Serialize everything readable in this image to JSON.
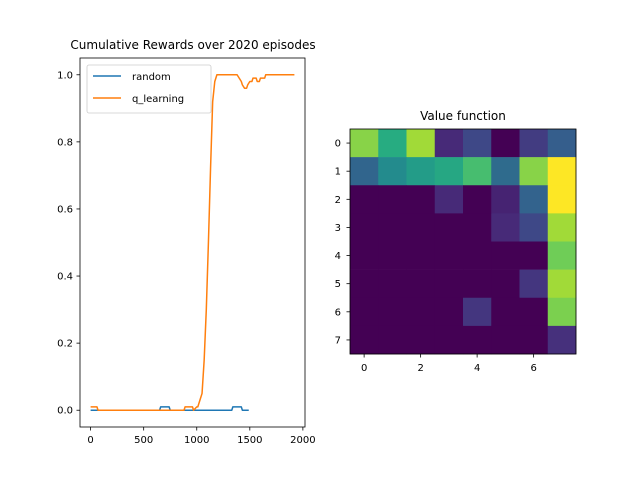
{
  "chart_data": [
    {
      "type": "line",
      "title": "Cumulative Rewards over 2020 episodes",
      "xlabel": "",
      "ylabel": "",
      "xlim": [
        -100,
        2020
      ],
      "ylim": [
        -0.05,
        1.05
      ],
      "xticks": [
        0,
        500,
        1000,
        1500,
        2000
      ],
      "xtick_labels": [
        "0",
        "500",
        "1000",
        "1500",
        "2000"
      ],
      "yticks": [
        0.0,
        0.2,
        0.4,
        0.6,
        0.8,
        1.0
      ],
      "ytick_labels": [
        "0.0",
        "0.2",
        "0.4",
        "0.6",
        "0.8",
        "1.0"
      ],
      "grid": false,
      "legend": "top-left",
      "series": [
        {
          "name": "random",
          "color": "#1f77b4",
          "x": [
            0,
            650,
            660,
            740,
            750,
            1330,
            1340,
            1420,
            1430,
            1490
          ],
          "y": [
            0.0,
            0.0,
            0.01,
            0.01,
            0.0,
            0.0,
            0.01,
            0.01,
            0.0,
            0.0
          ]
        },
        {
          "name": "q_learning",
          "color": "#ff7f0e",
          "x": [
            0,
            60,
            70,
            880,
            890,
            960,
            970,
            1000,
            1010,
            1030,
            1050,
            1070,
            1090,
            1110,
            1130,
            1150,
            1170,
            1190,
            1200,
            1380,
            1400,
            1420,
            1430,
            1450,
            1470,
            1480,
            1500,
            1520,
            1530,
            1560,
            1570,
            1590,
            1600,
            1620,
            1640,
            1650,
            1920
          ],
          "y": [
            0.01,
            0.01,
            0.0,
            0.0,
            0.01,
            0.01,
            0.0,
            0.01,
            0.01,
            0.03,
            0.05,
            0.15,
            0.3,
            0.5,
            0.72,
            0.92,
            0.98,
            1.0,
            1.0,
            1.0,
            0.99,
            0.98,
            0.97,
            0.96,
            0.96,
            0.97,
            0.98,
            0.98,
            0.99,
            0.99,
            0.98,
            0.98,
            0.99,
            0.99,
            0.99,
            1.0,
            1.0
          ]
        }
      ]
    },
    {
      "type": "heatmap",
      "title": "Value function",
      "xticks": [
        0,
        2,
        4,
        6
      ],
      "xtick_labels": [
        "0",
        "2",
        "4",
        "6"
      ],
      "yticks": [
        0,
        1,
        2,
        3,
        4,
        5,
        6,
        7
      ],
      "ytick_labels": [
        "0",
        "1",
        "2",
        "3",
        "4",
        "5",
        "6",
        "7"
      ],
      "colormap": "viridis",
      "vmin": 0.0,
      "vmax": 1.0,
      "values": [
        [
          0.82,
          0.62,
          0.86,
          0.12,
          0.22,
          0.0,
          0.18,
          0.3
        ],
        [
          0.33,
          0.48,
          0.55,
          0.6,
          0.7,
          0.35,
          0.82,
          1.0
        ],
        [
          0.0,
          0.0,
          0.0,
          0.12,
          0.0,
          0.1,
          0.32,
          1.0
        ],
        [
          0.0,
          0.0,
          0.0,
          0.0,
          0.0,
          0.12,
          0.22,
          0.86
        ],
        [
          0.0,
          0.0,
          0.0,
          0.0,
          0.0,
          0.0,
          0.0,
          0.78
        ],
        [
          0.0,
          0.0,
          0.0,
          0.0,
          0.0,
          0.0,
          0.16,
          0.86
        ],
        [
          0.0,
          0.0,
          0.0,
          0.0,
          0.16,
          0.0,
          0.0,
          0.8
        ],
        [
          0.0,
          0.0,
          0.0,
          0.0,
          0.0,
          0.0,
          0.0,
          0.14
        ]
      ]
    }
  ]
}
